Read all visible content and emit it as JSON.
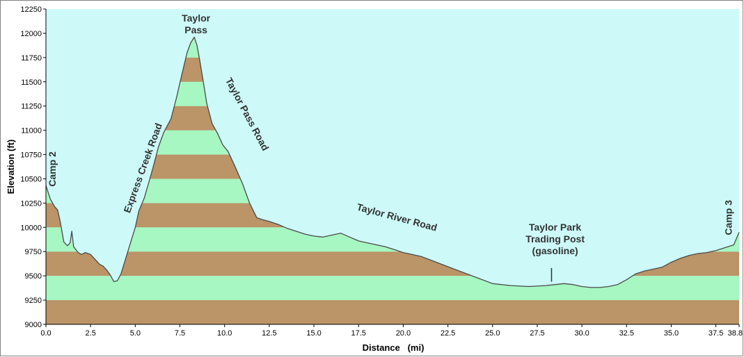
{
  "chart_data": {
    "type": "area",
    "xlabel": "Distance   (mi)",
    "ylabel": "Elevation (ft)",
    "xlim": [
      0,
      38.8
    ],
    "ylim": [
      9000,
      12250
    ],
    "x_ticks": [
      "0.0",
      "2.5",
      "5.0",
      "7.5",
      "10.0",
      "12.5",
      "15.0",
      "17.5",
      "20.0",
      "22.5",
      "25.0",
      "27.5",
      "30.0",
      "32.5",
      "35.0",
      "37.5",
      "38.8"
    ],
    "y_ticks": [
      "9000",
      "9250",
      "9500",
      "9750",
      "10000",
      "10250",
      "10500",
      "10750",
      "11000",
      "11250",
      "11500",
      "11750",
      "12000",
      "12250"
    ],
    "band_interval_ft": 250,
    "colors": {
      "background": "#cdf9f9",
      "band_light": "#a6f7c1",
      "band_dark": "#bb9467",
      "line": "#4a4a4a"
    },
    "series": [
      {
        "x": [
          0,
          0.25,
          0.5,
          0.65,
          0.8,
          1.0,
          1.2,
          1.35,
          1.45,
          1.55,
          1.8,
          2.0,
          2.2,
          2.5,
          2.8,
          3.0,
          3.2,
          3.4,
          3.6,
          3.8,
          4.0,
          4.2,
          4.5,
          4.8,
          5.0,
          5.2,
          5.5,
          5.8,
          6.0,
          6.3,
          6.6,
          7.0,
          7.3,
          7.6,
          7.9,
          8.1,
          8.3,
          8.45,
          8.6,
          8.8,
          9.0,
          9.3,
          9.6,
          9.9,
          10.2,
          10.6,
          11.0,
          11.4,
          11.8,
          12.1,
          12.5,
          13.0,
          13.5,
          14.0,
          14.5,
          15.0,
          15.5,
          16.0,
          16.5,
          17.0,
          17.5,
          18.0,
          18.5,
          19.0,
          19.5,
          20.0,
          20.5,
          21.0,
          22.0,
          23.0,
          24.0,
          25.0,
          26.0,
          27.0,
          28.0,
          28.5,
          29.0,
          29.5,
          30.0,
          30.5,
          31.0,
          31.5,
          32.0,
          32.5,
          33.0,
          33.5,
          34.0,
          34.5,
          35.0,
          35.5,
          36.0,
          36.5,
          37.0,
          37.5,
          38.0,
          38.5,
          38.8
        ],
        "y": [
          10430,
          10290,
          10210,
          10180,
          10060,
          9850,
          9810,
          9840,
          9960,
          9800,
          9740,
          9720,
          9740,
          9720,
          9660,
          9620,
          9600,
          9560,
          9510,
          9440,
          9450,
          9520,
          9700,
          9880,
          10000,
          10170,
          10300,
          10490,
          10620,
          10830,
          10980,
          11120,
          11330,
          11570,
          11800,
          11900,
          11960,
          11880,
          11730,
          11510,
          11280,
          11070,
          10970,
          10850,
          10780,
          10620,
          10450,
          10250,
          10100,
          10080,
          10060,
          10030,
          9990,
          9960,
          9930,
          9910,
          9900,
          9920,
          9940,
          9900,
          9860,
          9840,
          9820,
          9800,
          9770,
          9740,
          9720,
          9700,
          9630,
          9560,
          9490,
          9420,
          9400,
          9390,
          9400,
          9410,
          9420,
          9410,
          9390,
          9380,
          9380,
          9390,
          9410,
          9460,
          9520,
          9550,
          9570,
          9590,
          9640,
          9680,
          9710,
          9730,
          9740,
          9760,
          9790,
          9820,
          9950
        ]
      }
    ],
    "annotations": [
      {
        "lines": [
          "Camp 2"
        ],
        "x": 0.55,
        "y": 10600,
        "rotate": -90,
        "anchor": "middle"
      },
      {
        "lines": [
          "Express Creek Road"
        ],
        "x": 5.6,
        "y": 10600,
        "rotate": -70,
        "anchor": "middle"
      },
      {
        "lines": [
          "Taylor",
          "Pass"
        ],
        "x": 8.4,
        "y": 12120,
        "rotate": 0,
        "anchor": "middle"
      },
      {
        "lines": [
          "Taylor Pass Road"
        ],
        "x": 11.1,
        "y": 11150,
        "rotate": 62,
        "anchor": "middle"
      },
      {
        "lines": [
          "Taylor River Road"
        ],
        "x": 19.6,
        "y": 10070,
        "rotate": 15,
        "anchor": "middle"
      },
      {
        "lines": [
          "Taylor Park",
          "Trading Post",
          "(gasoline)"
        ],
        "x": 28.5,
        "y": 9965,
        "rotate": 0,
        "anchor": "middle"
      },
      {
        "lines": [
          "Camp 3"
        ],
        "x": 38.4,
        "y": 10100,
        "rotate": -90,
        "anchor": "middle"
      }
    ],
    "markers": [
      {
        "x": 28.3,
        "y1": 9440,
        "y2": 9580
      }
    ],
    "grid": false,
    "legend": "none"
  }
}
